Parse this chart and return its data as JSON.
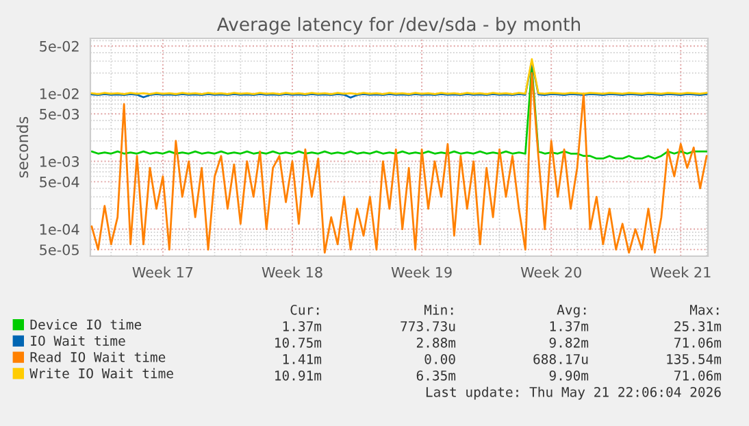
{
  "chart_data": {
    "type": "line",
    "title": "Average latency for /dev/sda - by month",
    "ylabel": "seconds",
    "log": "y",
    "grid": true,
    "legend": "bottom",
    "marker": "none",
    "line_style": "solid",
    "categories": [
      null,
      null,
      null,
      null,
      null,
      null,
      null,
      null,
      null,
      null,
      null,
      "Week 17",
      null,
      null,
      null,
      null,
      null,
      null,
      null,
      null,
      null,
      null,
      null,
      null,
      null,
      null,
      null,
      null,
      null,
      null,
      null,
      "Week 18",
      null,
      null,
      null,
      null,
      null,
      null,
      null,
      null,
      null,
      null,
      null,
      null,
      null,
      null,
      null,
      null,
      null,
      null,
      null,
      "Week 19",
      null,
      null,
      null,
      null,
      null,
      null,
      null,
      null,
      null,
      null,
      null,
      null,
      null,
      null,
      null,
      null,
      null,
      null,
      null,
      "Week 20",
      null,
      null,
      null,
      null,
      null,
      null,
      null,
      null,
      null,
      null,
      null,
      null,
      null,
      null,
      null,
      null,
      null,
      null,
      null,
      "Week 21",
      null,
      null,
      null,
      null
    ],
    "ylim": [
      4e-05,
      0.065
    ],
    "yticks": [
      {
        "value": 5e-05,
        "label": "5e-05"
      },
      {
        "value": 0.0001,
        "label": "1e-04"
      },
      {
        "value": 0.0005,
        "label": "5e-04"
      },
      {
        "value": 0.001,
        "label": "1e-03"
      },
      {
        "value": 0.005,
        "label": "5e-03"
      },
      {
        "value": 0.01,
        "label": "1e-02"
      },
      {
        "value": 0.05,
        "label": "5e-02"
      }
    ],
    "series": [
      {
        "name": "Device IO time",
        "color": "#00cc00",
        "values": [
          0.0014,
          0.0013,
          0.00135,
          0.0013,
          0.0014,
          0.0013,
          0.00135,
          0.0013,
          0.0014,
          0.0013,
          0.00135,
          0.0013,
          0.0014,
          0.0013,
          0.00135,
          0.0013,
          0.0014,
          0.0013,
          0.00135,
          0.0013,
          0.0014,
          0.0013,
          0.00135,
          0.0013,
          0.0014,
          0.0013,
          0.00135,
          0.0013,
          0.0014,
          0.0013,
          0.00135,
          0.0013,
          0.0014,
          0.0013,
          0.00135,
          0.0013,
          0.0014,
          0.0013,
          0.00135,
          0.0013,
          0.0014,
          0.0013,
          0.00135,
          0.0013,
          0.0014,
          0.0013,
          0.00135,
          0.0013,
          0.0014,
          0.0013,
          0.00135,
          0.0013,
          0.0014,
          0.0013,
          0.00135,
          0.0013,
          0.0014,
          0.0013,
          0.00135,
          0.0013,
          0.0014,
          0.0013,
          0.00135,
          0.0013,
          0.0014,
          0.0013,
          0.00135,
          0.0013,
          0.025,
          0.0014,
          0.0013,
          0.00135,
          0.0013,
          0.0014,
          0.0013,
          0.0013,
          0.0012,
          0.0012,
          0.0011,
          0.0011,
          0.0012,
          0.0011,
          0.0011,
          0.0012,
          0.0011,
          0.0011,
          0.0012,
          0.0011,
          0.0012,
          0.0014,
          0.0013,
          0.0014,
          0.0013,
          0.0014,
          0.0014,
          0.0014
        ]
      },
      {
        "name": "IO Wait time",
        "color": "#0066b3",
        "values": [
          0.0097,
          0.0095,
          0.0098,
          0.0096,
          0.0097,
          0.0095,
          0.0098,
          0.0096,
          0.0088,
          0.0095,
          0.0098,
          0.0096,
          0.0097,
          0.0095,
          0.0098,
          0.0096,
          0.0097,
          0.0095,
          0.0098,
          0.0096,
          0.0097,
          0.0095,
          0.0098,
          0.0096,
          0.0097,
          0.0095,
          0.0098,
          0.0096,
          0.0097,
          0.0095,
          0.0098,
          0.0096,
          0.0097,
          0.0095,
          0.0098,
          0.0096,
          0.0097,
          0.0095,
          0.0098,
          0.0096,
          0.0087,
          0.0095,
          0.0098,
          0.0096,
          0.0097,
          0.0095,
          0.0098,
          0.0096,
          0.0097,
          0.0095,
          0.0098,
          0.0096,
          0.0097,
          0.0095,
          0.0098,
          0.0096,
          0.0097,
          0.0095,
          0.0098,
          0.0096,
          0.0097,
          0.0095,
          0.0098,
          0.0096,
          0.0097,
          0.0095,
          0.0098,
          0.0096,
          0.03,
          0.0097,
          0.0095,
          0.0098,
          0.0097,
          0.0095,
          0.0098,
          0.0097,
          0.0095,
          0.0098,
          0.0097,
          0.0095,
          0.0098,
          0.0097,
          0.0095,
          0.0098,
          0.0097,
          0.0095,
          0.0098,
          0.0097,
          0.0095,
          0.0098,
          0.0097,
          0.0095,
          0.0098,
          0.0097,
          0.0095,
          0.0098
        ]
      },
      {
        "name": "Read IO Wait time",
        "color": "#ff8000",
        "values": [
          0.00011,
          5e-05,
          0.00022,
          6e-05,
          0.00015,
          0.007,
          6e-05,
          0.0012,
          6e-05,
          0.0008,
          0.0002,
          0.0006,
          5e-05,
          0.002,
          0.0003,
          0.001,
          0.00015,
          0.0008,
          5e-05,
          0.0006,
          0.0012,
          0.0002,
          0.0009,
          0.00012,
          0.001,
          0.0003,
          0.0014,
          0.0001,
          0.0008,
          0.0012,
          0.00025,
          0.001,
          0.00012,
          0.0015,
          0.0003,
          0.0011,
          4.5e-05,
          0.00015,
          6e-05,
          0.0003,
          5e-05,
          0.0002,
          8e-05,
          0.0003,
          5e-05,
          0.001,
          0.0002,
          0.0015,
          0.0001,
          0.0008,
          5e-05,
          0.0015,
          0.0002,
          0.001,
          0.0003,
          0.0018,
          8e-05,
          0.0012,
          0.0002,
          0.001,
          6e-05,
          0.0008,
          0.00015,
          0.0015,
          0.0003,
          0.0012,
          0.0002,
          5e-05,
          0.02,
          0.0012,
          0.0001,
          0.002,
          0.0003,
          0.0015,
          0.0002,
          0.0008,
          0.01,
          0.0001,
          0.0003,
          6e-05,
          0.0002,
          5e-05,
          0.00012,
          4.5e-05,
          0.0001,
          5e-05,
          0.0002,
          4.5e-05,
          0.00015,
          0.0015,
          0.0006,
          0.0018,
          0.0008,
          0.0016,
          0.0004,
          0.0012
        ]
      },
      {
        "name": "Write IO Wait time",
        "color": "#ffcc00",
        "values": [
          0.0101,
          0.0098,
          0.0102,
          0.0099,
          0.0101,
          0.0098,
          0.0102,
          0.0099,
          0.0101,
          0.0098,
          0.0102,
          0.0099,
          0.0101,
          0.0098,
          0.0102,
          0.0099,
          0.0101,
          0.0098,
          0.0102,
          0.0099,
          0.0101,
          0.0098,
          0.0102,
          0.0099,
          0.0101,
          0.0098,
          0.0102,
          0.0099,
          0.0101,
          0.0098,
          0.0102,
          0.0099,
          0.0101,
          0.0098,
          0.0102,
          0.0099,
          0.0101,
          0.0098,
          0.0102,
          0.0099,
          0.0101,
          0.0098,
          0.0102,
          0.0099,
          0.0101,
          0.0098,
          0.0102,
          0.0099,
          0.0101,
          0.0098,
          0.0102,
          0.0099,
          0.0101,
          0.0098,
          0.0102,
          0.0099,
          0.0101,
          0.0098,
          0.0102,
          0.0099,
          0.0101,
          0.0098,
          0.0102,
          0.0099,
          0.0101,
          0.0098,
          0.0102,
          0.0099,
          0.032,
          0.0101,
          0.0099,
          0.0102,
          0.0101,
          0.0099,
          0.0102,
          0.0101,
          0.0099,
          0.0102,
          0.0101,
          0.0099,
          0.0102,
          0.0101,
          0.0099,
          0.0102,
          0.0101,
          0.0099,
          0.0102,
          0.0101,
          0.0099,
          0.0102,
          0.0101,
          0.0099,
          0.0102,
          0.0101,
          0.0099,
          0.0102
        ]
      }
    ],
    "annotations": [
      "Cur:",
      "Min:",
      "Avg:",
      "Max:",
      "1.37m",
      "773.73u",
      "1.37m",
      "25.31m",
      "10.75m",
      "2.88m",
      "9.82m",
      "71.06m",
      "1.41m",
      "0.00",
      "688.17u",
      "135.54m",
      "10.91m",
      "6.35m",
      "9.90m",
      "71.06m",
      "Last update: Thu May 21 22:06:04 2026"
    ]
  }
}
